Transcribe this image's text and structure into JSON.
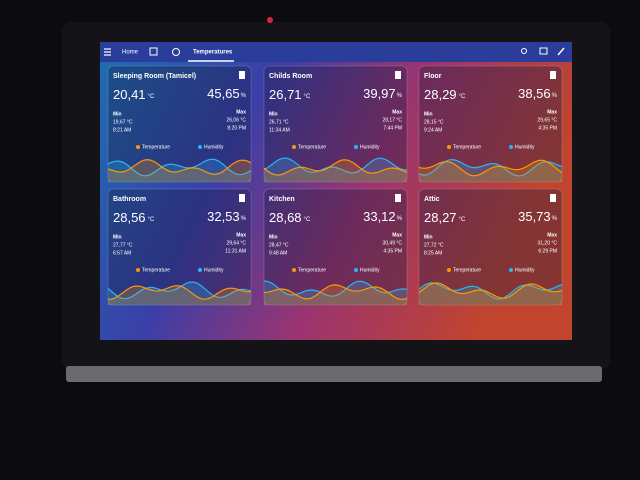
{
  "header": {
    "tabs": [
      "Home",
      "Temperatures"
    ]
  },
  "labels": {
    "min": "Min",
    "max": "Max",
    "temperature": "Temperature",
    "humidity": "Humidity",
    "temp_unit": "°C",
    "hum_unit": "%"
  },
  "cards": [
    {
      "name": "Sleeping Room (Tamicel)",
      "temperature": "20,41",
      "humidity": "45,65",
      "min": "19,67 °C",
      "min_time": "8:21 AM",
      "max": "26,06 °C",
      "max_time": "8:20 PM"
    },
    {
      "name": "Childs Room",
      "temperature": "26,71",
      "humidity": "39,97",
      "min": "26,71 °C",
      "min_time": "11:34 AM",
      "max": "28,17 °C",
      "max_time": "7:44 PM"
    },
    {
      "name": "Floor",
      "temperature": "28,29",
      "humidity": "38,56",
      "min": "28,15 °C",
      "min_time": "9:24 AM",
      "max": "29,65 °C",
      "max_time": "4:35 PM"
    },
    {
      "name": "Bathroom",
      "temperature": "28,56",
      "humidity": "32,53",
      "min": "27,77 °C",
      "min_time": "6:57 AM",
      "max": "29,64 °C",
      "max_time": "11:31 AM"
    },
    {
      "name": "Kitchen",
      "temperature": "28,68",
      "humidity": "33,12",
      "min": "28,47 °C",
      "min_time": "9:48 AM",
      "max": "30,49 °C",
      "max_time": "4:35 PM"
    },
    {
      "name": "Attic",
      "temperature": "28,27",
      "humidity": "35,73",
      "min": "27,72 °C",
      "min_time": "8:25 AM",
      "max": "31,20 °C",
      "max_time": "6:29 PM"
    }
  ]
}
